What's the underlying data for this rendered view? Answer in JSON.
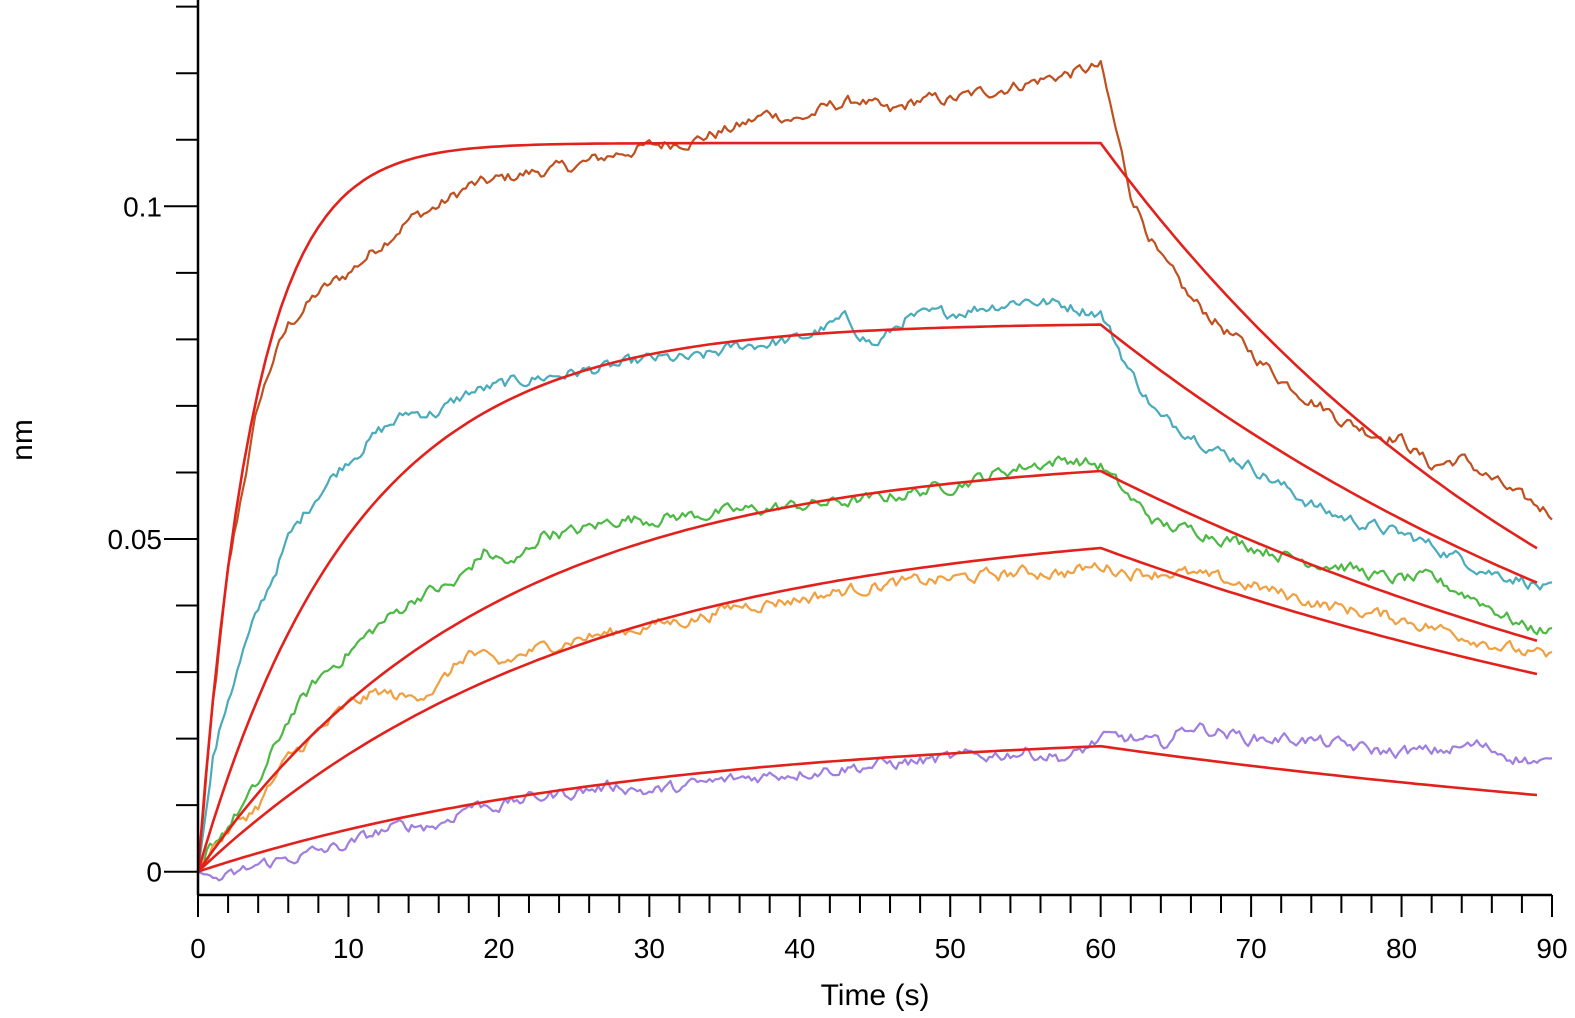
{
  "chart_data": {
    "type": "line",
    "xlabel": "Time (s)",
    "ylabel": "nm",
    "xlim": [
      0,
      90
    ],
    "ylim": [
      -0.0035,
      0.131
    ],
    "x_ticks": [
      0,
      10,
      20,
      30,
      40,
      50,
      60,
      70,
      80,
      90
    ],
    "x_tick_labels": [
      "0",
      "10",
      "20",
      "30",
      "40",
      "50",
      "60",
      "70",
      "80",
      "90"
    ],
    "y_labeled_ticks": [
      0,
      0.05,
      0.1
    ],
    "y_tick_labels": [
      "0",
      "0.05",
      "0.1"
    ],
    "y_minor_ticks": [
      0.01,
      0.02,
      0.03,
      0.04,
      0.06,
      0.07,
      0.08,
      0.09,
      0.11,
      0.12,
      0.13
    ],
    "grid": false,
    "legend": "none",
    "series": [
      {
        "role": "measured",
        "color": "#c0501f",
        "x": [
          0,
          1,
          2,
          3,
          4,
          5,
          6,
          8,
          10,
          12,
          14,
          16,
          18,
          20,
          22,
          25,
          28,
          30,
          33,
          36,
          38,
          40,
          42,
          44,
          46,
          48,
          50,
          52,
          54,
          56,
          58,
          60,
          62,
          64,
          66,
          68,
          70,
          72,
          74,
          76,
          78,
          80,
          82,
          84,
          86,
          88,
          90
        ],
        "y": [
          0,
          0.025,
          0.045,
          0.058,
          0.07,
          0.077,
          0.082,
          0.087,
          0.09,
          0.094,
          0.098,
          0.1,
          0.103,
          0.104,
          0.105,
          0.106,
          0.108,
          0.109,
          0.11,
          0.112,
          0.114,
          0.113,
          0.115,
          0.116,
          0.114,
          0.116,
          0.116,
          0.117,
          0.118,
          0.119,
          0.12,
          0.121,
          0.102,
          0.092,
          0.086,
          0.082,
          0.078,
          0.074,
          0.071,
          0.068,
          0.066,
          0.065,
          0.061,
          0.062,
          0.059,
          0.056,
          0.054
        ]
      },
      {
        "role": "measured",
        "color": "#4aabbc",
        "x": [
          0,
          1,
          2,
          3,
          4,
          6,
          8,
          10,
          12,
          14,
          16,
          18,
          20,
          22,
          25,
          28,
          30,
          33,
          36,
          40,
          43,
          45,
          47,
          50,
          55,
          58,
          60,
          62,
          64,
          66,
          68,
          70,
          72,
          75,
          78,
          81,
          84,
          86,
          88,
          90
        ],
        "y": [
          0,
          0.017,
          0.026,
          0.033,
          0.039,
          0.05,
          0.057,
          0.062,
          0.066,
          0.069,
          0.069,
          0.072,
          0.073,
          0.074,
          0.075,
          0.076,
          0.077,
          0.077,
          0.079,
          0.08,
          0.083,
          0.079,
          0.083,
          0.084,
          0.086,
          0.085,
          0.084,
          0.075,
          0.068,
          0.066,
          0.063,
          0.061,
          0.058,
          0.054,
          0.052,
          0.05,
          0.047,
          0.045,
          0.044,
          0.042
        ]
      },
      {
        "role": "measured",
        "color": "#4cb944",
        "x": [
          0,
          1,
          2,
          3,
          4,
          6,
          8,
          10,
          12,
          15,
          17,
          19,
          21,
          23,
          25,
          28,
          30,
          35,
          40,
          45,
          50,
          55,
          58,
          60,
          62,
          64,
          67,
          70,
          73,
          76,
          79,
          82,
          85,
          88,
          90
        ],
        "y": [
          0,
          0.004,
          0.007,
          0.01,
          0.013,
          0.023,
          0.029,
          0.033,
          0.037,
          0.042,
          0.043,
          0.048,
          0.046,
          0.051,
          0.051,
          0.053,
          0.053,
          0.054,
          0.055,
          0.056,
          0.058,
          0.061,
          0.062,
          0.061,
          0.056,
          0.052,
          0.051,
          0.049,
          0.047,
          0.046,
          0.044,
          0.044,
          0.041,
          0.037,
          0.036
        ]
      },
      {
        "role": "measured",
        "color": "#f0a040",
        "x": [
          0,
          1,
          2,
          3,
          4,
          6,
          8,
          10,
          12,
          14,
          16,
          18,
          20,
          22,
          25,
          28,
          30,
          33,
          36,
          40,
          45,
          50,
          55,
          58,
          60,
          62,
          65,
          70,
          75,
          80,
          85,
          88,
          90
        ],
        "y": [
          0,
          0.004,
          0.006,
          0.008,
          0.01,
          0.017,
          0.021,
          0.025,
          0.027,
          0.026,
          0.028,
          0.033,
          0.031,
          0.033,
          0.035,
          0.036,
          0.037,
          0.038,
          0.04,
          0.041,
          0.043,
          0.044,
          0.045,
          0.045,
          0.046,
          0.045,
          0.045,
          0.043,
          0.04,
          0.038,
          0.035,
          0.033,
          0.032
        ]
      },
      {
        "role": "measured",
        "color": "#a07ee0",
        "x": [
          0,
          1,
          2,
          3,
          4,
          6,
          8,
          10,
          12,
          14,
          16,
          18,
          20,
          22,
          25,
          28,
          30,
          33,
          36,
          40,
          45,
          50,
          55,
          58,
          60,
          62,
          64,
          66,
          68,
          70,
          73,
          76,
          79,
          82,
          85,
          88,
          90
        ],
        "y": [
          0,
          -0.001,
          -0.001,
          0,
          0.001,
          0.002,
          0.003,
          0.004,
          0.006,
          0.007,
          0.007,
          0.01,
          0.01,
          0.011,
          0.012,
          0.013,
          0.012,
          0.013,
          0.014,
          0.015,
          0.016,
          0.017,
          0.018,
          0.017,
          0.02,
          0.02,
          0.019,
          0.022,
          0.021,
          0.02,
          0.02,
          0.019,
          0.018,
          0.018,
          0.019,
          0.017,
          0.016
        ]
      },
      {
        "role": "fit",
        "color": "#e3211c",
        "association": {
          "plateau": 0.1095,
          "rate": 0.27
        },
        "dissociation": {
          "rate": 0.028
        },
        "x_end": 89
      },
      {
        "role": "fit",
        "color": "#e3211c",
        "association": {
          "plateau": 0.0825,
          "rate": 0.095
        },
        "dissociation": {
          "rate": 0.022
        },
        "x_end": 89
      },
      {
        "role": "fit",
        "color": "#e3211c",
        "association": {
          "plateau": 0.063,
          "rate": 0.052
        },
        "dissociation": {
          "rate": 0.019
        },
        "x_end": 89
      },
      {
        "role": "fit",
        "color": "#e3211c",
        "association": {
          "plateau": 0.0535,
          "rate": 0.04
        },
        "dissociation": {
          "rate": 0.017
        },
        "x_end": 89
      },
      {
        "role": "fit",
        "color": "#e3211c",
        "association": {
          "plateau": 0.0215,
          "rate": 0.035
        },
        "dissociation": {
          "rate": 0.017
        },
        "x_end": 89
      }
    ]
  }
}
